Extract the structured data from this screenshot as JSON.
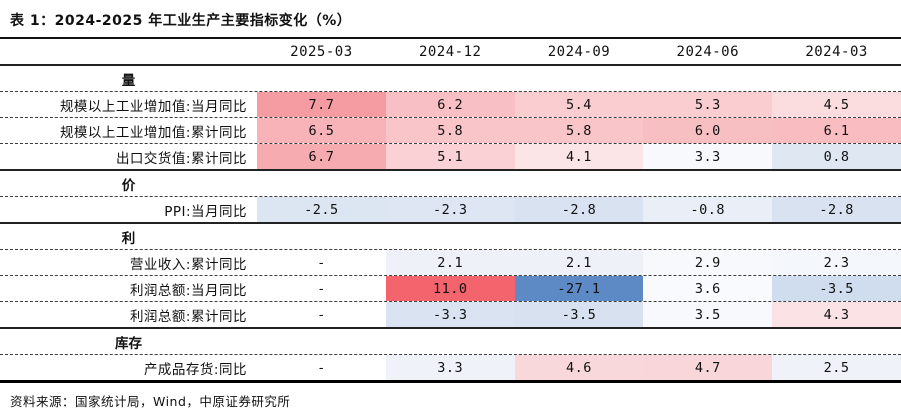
{
  "table": {
    "title": "表 1：2024-2025 年工业生产主要指标变化（%）",
    "source_note": "资料来源：国家统计局，Wind，中原证券研究所",
    "columns": [
      "2025-03",
      "2024-12",
      "2024-09",
      "2024-06",
      "2024-03"
    ],
    "groups": [
      {
        "name": "量",
        "rows": [
          {
            "label": "规模以上工业增加值:当月同比",
            "values": [
              "7.7",
              "6.2",
              "5.4",
              "5.3",
              "4.5"
            ],
            "colors": [
              "#F59CA3",
              "#F8C0C4",
              "#FACDD0",
              "#FACDD1",
              "#FBDCDF"
            ]
          },
          {
            "label": "规模以上工业增加值:累计同比",
            "values": [
              "6.5",
              "5.8",
              "5.8",
              "6.0",
              "6.1"
            ],
            "colors": [
              "#F7B3B8",
              "#F9C5C9",
              "#F9C5C9",
              "#F8BFC3",
              "#F8BCC1"
            ]
          },
          {
            "label": "出口交货值:累计同比",
            "values": [
              "6.7",
              "5.1",
              "4.1",
              "3.3",
              "0.8"
            ],
            "colors": [
              "#F6ABB1",
              "#FAD2D5",
              "#FCE5E7",
              "#F7F9FC",
              "#DFE7F3"
            ]
          }
        ]
      },
      {
        "name": "价",
        "rows": [
          {
            "label": "PPI:当月同比",
            "values": [
              "-2.5",
              "-2.3",
              "-2.8",
              "-0.8",
              "-2.8"
            ],
            "colors": [
              "#DCE5F2",
              "#DEE6F3",
              "#D9E2F0",
              "#EAEFF7",
              "#D9E2F0"
            ]
          }
        ]
      },
      {
        "name": "利",
        "rows": [
          {
            "label": "营业收入:累计同比",
            "values": [
              "-",
              "2.1",
              "2.1",
              "2.9",
              "2.3"
            ],
            "colors": [
              "#FFFFFF",
              "#EEF2F8",
              "#EEF2F8",
              "#F7F9FC",
              "#F4F7FB"
            ]
          },
          {
            "label": "利润总额:当月同比",
            "values": [
              "-",
              "11.0",
              "-27.1",
              "3.6",
              "-3.5"
            ],
            "colors": [
              "#FFFFFF",
              "#F4646C",
              "#5D89C4",
              "#F9FAFD",
              "#CFDDEE"
            ]
          },
          {
            "label": "利润总额:累计同比",
            "values": [
              "-",
              "-3.3",
              "-3.5",
              "3.5",
              "4.3"
            ],
            "colors": [
              "#FFFFFF",
              "#D9E3F1",
              "#D7E1F0",
              "#F7F9FC",
              "#FBE2E4"
            ]
          }
        ]
      },
      {
        "name": "库存",
        "rows": [
          {
            "label": "产成品存货:同比",
            "values": [
              "-",
              "3.3",
              "4.6",
              "4.7",
              "2.5"
            ],
            "colors": [
              "#FFFFFF",
              "#EFF3F9",
              "#F9D8DB",
              "#F9D6D9",
              "#EFF3F9"
            ]
          }
        ]
      }
    ],
    "heatmap_colors": {
      "strong_positive": "#F4646C",
      "strong_negative": "#5D89C4",
      "positive_tint": "#F8C0C4",
      "negative_tint": "#DCE5F2"
    }
  }
}
